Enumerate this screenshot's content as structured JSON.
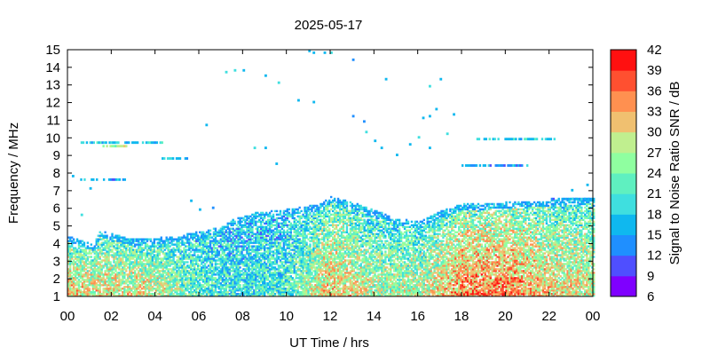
{
  "chart_data": {
    "type": "heatmap",
    "title": "2025-05-17",
    "xlabel": "UT Time / hrs",
    "ylabel": "Frequency / MHz",
    "colorbar_label": "Signal to Noise Ratio SNR / dB",
    "x_ticks": [
      "00",
      "02",
      "04",
      "06",
      "08",
      "10",
      "12",
      "14",
      "16",
      "18",
      "20",
      "22",
      "00"
    ],
    "xlim": [
      0,
      24
    ],
    "y_ticks": [
      1,
      2,
      3,
      4,
      5,
      6,
      7,
      8,
      9,
      10,
      11,
      12,
      13,
      14,
      15
    ],
    "ylim": [
      1,
      15
    ],
    "colorbar_ticks": [
      6,
      9,
      12,
      15,
      18,
      21,
      24,
      27,
      30,
      33,
      36,
      39,
      42
    ],
    "colorbar_range": [
      6,
      42
    ],
    "colorbar_colors": [
      "#7f00ff",
      "#4f4fff",
      "#1f8fff",
      "#0fb8ef",
      "#3fdfdf",
      "#5ff0c0",
      "#8fffa0",
      "#c0ef8f",
      "#f0c070",
      "#ff9050",
      "#ff5030",
      "#ff1010"
    ],
    "grid": false,
    "legend_position": "right colorbar",
    "dense_band": {
      "description_free": true,
      "upper_edge_mhz": [
        [
          0.0,
          4.4
        ],
        [
          1.2,
          3.9
        ],
        [
          1.4,
          4.7
        ],
        [
          3.0,
          4.2
        ],
        [
          5.0,
          4.4
        ],
        [
          7.0,
          4.9
        ],
        [
          7.5,
          5.3
        ],
        [
          8.5,
          5.7
        ],
        [
          10.0,
          5.9
        ],
        [
          11.5,
          6.2
        ],
        [
          12.0,
          6.6
        ],
        [
          13.0,
          6.3
        ],
        [
          15.0,
          5.4
        ],
        [
          16.0,
          5.2
        ],
        [
          17.0,
          5.8
        ],
        [
          18.0,
          6.2
        ],
        [
          20.0,
          6.3
        ],
        [
          22.0,
          6.4
        ],
        [
          24.0,
          6.6
        ]
      ],
      "core_snr_db_by_hour": [
        [
          0,
          31
        ],
        [
          2,
          30
        ],
        [
          4,
          29
        ],
        [
          6,
          22
        ],
        [
          8,
          20
        ],
        [
          10,
          21
        ],
        [
          12,
          32
        ],
        [
          14,
          27
        ],
        [
          16,
          27
        ],
        [
          18,
          35
        ],
        [
          20,
          36
        ],
        [
          22,
          31
        ],
        [
          24,
          29
        ]
      ]
    },
    "sparse_traces": [
      {
        "x_start": 0.6,
        "x_end": 4.3,
        "y": 9.7,
        "snr_db": 18
      },
      {
        "x_start": 1.6,
        "x_end": 2.8,
        "y": 9.5,
        "snr_db": 27
      },
      {
        "x_start": 0.5,
        "x_end": 2.6,
        "y": 7.6,
        "snr_db": 15
      },
      {
        "x_start": 4.3,
        "x_end": 5.5,
        "y": 8.8,
        "snr_db": 18
      },
      {
        "x_start": 18.6,
        "x_end": 22.2,
        "y": 9.9,
        "snr_db": 18
      },
      {
        "x_start": 18.0,
        "x_end": 21.0,
        "y": 8.4,
        "snr_db": 15
      },
      {
        "x_start": 22.0,
        "x_end": 24.0,
        "y": 6.5,
        "snr_db": 15
      }
    ],
    "isolated_points": [
      [
        11.0,
        14.9
      ],
      [
        11.2,
        14.8
      ],
      [
        11.7,
        14.8
      ],
      [
        12.0,
        14.8
      ],
      [
        13.0,
        14.4
      ],
      [
        7.2,
        13.7
      ],
      [
        7.6,
        13.8
      ],
      [
        8.0,
        13.8
      ],
      [
        9.0,
        13.5
      ],
      [
        9.6,
        13.1
      ],
      [
        10.5,
        12.1
      ],
      [
        11.2,
        12.0
      ],
      [
        14.5,
        13.3
      ],
      [
        16.5,
        12.9
      ],
      [
        17.0,
        13.3
      ],
      [
        16.2,
        11.1
      ],
      [
        16.5,
        11.2
      ],
      [
        16.8,
        11.6
      ],
      [
        17.6,
        11.3
      ],
      [
        13.0,
        11.2
      ],
      [
        13.5,
        10.9
      ],
      [
        13.6,
        10.3
      ],
      [
        14.0,
        9.8
      ],
      [
        14.3,
        9.4
      ],
      [
        15.0,
        9.0
      ],
      [
        15.6,
        9.6
      ],
      [
        16.0,
        10.0
      ],
      [
        16.5,
        9.4
      ],
      [
        17.3,
        10.2
      ],
      [
        9.0,
        9.4
      ],
      [
        9.5,
        8.5
      ],
      [
        8.5,
        9.4
      ],
      [
        6.3,
        10.7
      ],
      [
        1.0,
        7.1
      ],
      [
        0.2,
        7.8
      ],
      [
        5.6,
        6.4
      ],
      [
        6.0,
        5.9
      ],
      [
        6.6,
        6.0
      ],
      [
        0.6,
        5.6
      ],
      [
        23.7,
        7.3
      ],
      [
        23.0,
        7.0
      ]
    ]
  }
}
